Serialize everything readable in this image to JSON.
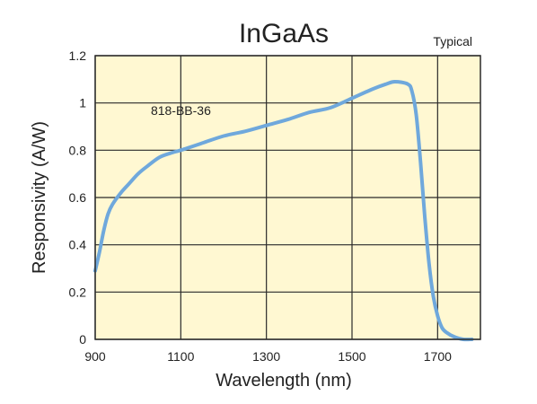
{
  "chart_data": {
    "type": "line",
    "title": "InGaAs",
    "subtitle": "Typical",
    "xlabel": "Wavelength (nm)",
    "ylabel": "Responsivity (A/W)",
    "xlim": [
      900,
      1800
    ],
    "ylim": [
      0,
      1.2
    ],
    "x_ticks": [
      900,
      1100,
      1300,
      1500,
      1700
    ],
    "y_ticks": [
      0,
      0.2,
      0.4,
      0.6,
      0.8,
      1,
      1.2
    ],
    "x_tick_labels": [
      "900",
      "1100",
      "1300",
      "1500",
      "1700"
    ],
    "y_tick_labels": [
      "0",
      "0.2",
      "0.4",
      "0.6",
      "0.8",
      "1",
      "1.2"
    ],
    "grid": true,
    "series": [
      {
        "name": "818-BB-36",
        "x": [
          900,
          910,
          920,
          930,
          940,
          960,
          980,
          1000,
          1020,
          1050,
          1080,
          1100,
          1150,
          1200,
          1250,
          1300,
          1350,
          1400,
          1450,
          1500,
          1550,
          1580,
          1600,
          1630,
          1640,
          1650,
          1660,
          1670,
          1680,
          1690,
          1700,
          1710,
          1720,
          1740,
          1760,
          1780
        ],
        "y": [
          0.29,
          0.37,
          0.46,
          0.53,
          0.57,
          0.62,
          0.66,
          0.7,
          0.73,
          0.77,
          0.79,
          0.8,
          0.83,
          0.86,
          0.88,
          0.905,
          0.93,
          0.96,
          0.98,
          1.02,
          1.06,
          1.08,
          1.09,
          1.08,
          1.05,
          0.95,
          0.75,
          0.52,
          0.32,
          0.18,
          0.1,
          0.05,
          0.03,
          0.01,
          0.0,
          0.0
        ]
      }
    ],
    "annotations": [
      {
        "text": "818-BB-36",
        "x": 1030,
        "y": 0.95
      }
    ],
    "colors": {
      "plot_background": "#fff8d2",
      "line": "#6fa8dc",
      "grid": "#2a2a2a"
    }
  }
}
